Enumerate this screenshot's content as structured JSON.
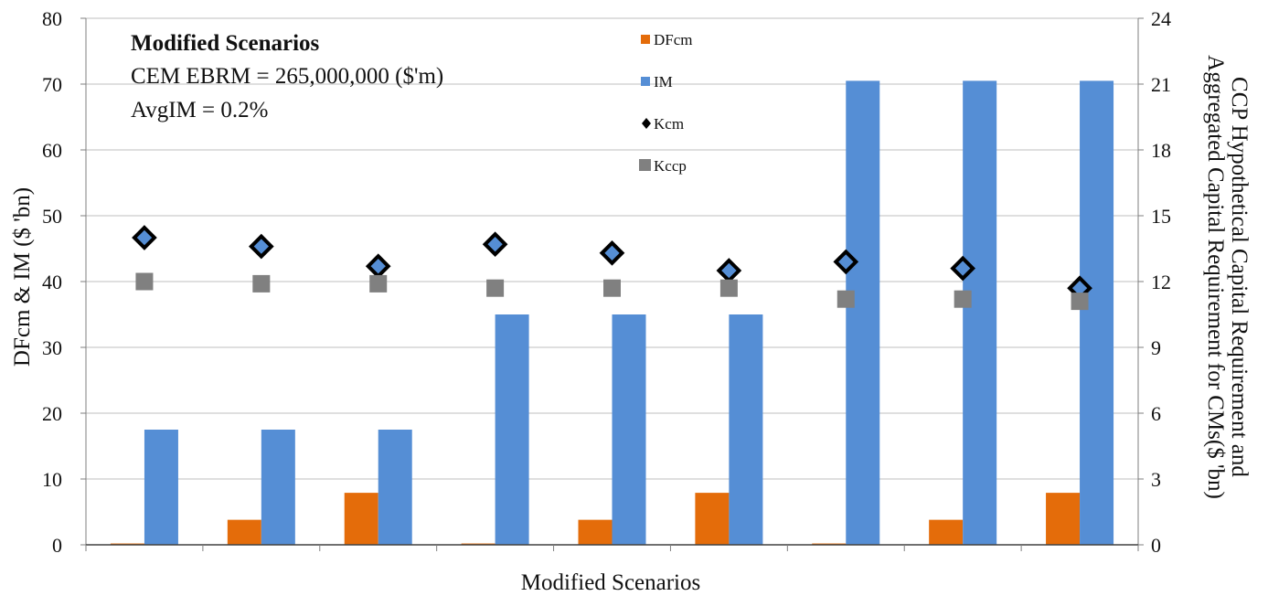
{
  "chart_data": {
    "type": "bar",
    "title": "",
    "xlabel": "Modified Scenarios",
    "ylabel": "DFcm & IM ($ 'bn)",
    "y2label_line1": "CCP Hypothetical Capital Requirement and",
    "y2label_line2": "Aggregated Capital Requirement for CMs($ 'bn)",
    "ylim": [
      0,
      80
    ],
    "y2lim": [
      0,
      24
    ],
    "yticks": [
      "0",
      "10",
      "20",
      "30",
      "40",
      "50",
      "60",
      "70",
      "80"
    ],
    "y2ticks": [
      "0",
      "3",
      "6",
      "9",
      "12",
      "15",
      "18",
      "21",
      "24"
    ],
    "categories": [
      "",
      "",
      "",
      "",
      "",
      "",
      "",
      "",
      ""
    ],
    "grid": true,
    "legend_position": "top-center",
    "annotations": {
      "title": "Modified Scenarios",
      "line1": "CEM EBRM =  265,000,000 ($'m)",
      "line2": "AvgIM = 0.2%"
    },
    "series": [
      {
        "name": "DFcm",
        "kind": "bar",
        "axis": "left",
        "color": "#E46C0A",
        "values": [
          0.2,
          3.8,
          7.9,
          0.2,
          3.8,
          7.9,
          0.2,
          3.8,
          7.9
        ]
      },
      {
        "name": "IM",
        "kind": "bar",
        "axis": "left",
        "color": "#558ED5",
        "values": [
          17.5,
          17.5,
          17.5,
          35.0,
          35.0,
          35.0,
          70.5,
          70.5,
          70.5
        ]
      },
      {
        "name": "Kcm",
        "kind": "scatter",
        "marker": "diamond",
        "axis": "right",
        "color": "#000000",
        "values": [
          14.0,
          13.6,
          12.7,
          13.7,
          13.3,
          12.5,
          12.9,
          12.6,
          11.7
        ]
      },
      {
        "name": "Kccp",
        "kind": "scatter",
        "marker": "square",
        "axis": "right",
        "color": "#808080",
        "values": [
          12.0,
          11.9,
          11.9,
          11.7,
          11.7,
          11.7,
          11.2,
          11.2,
          11.1
        ]
      }
    ]
  }
}
